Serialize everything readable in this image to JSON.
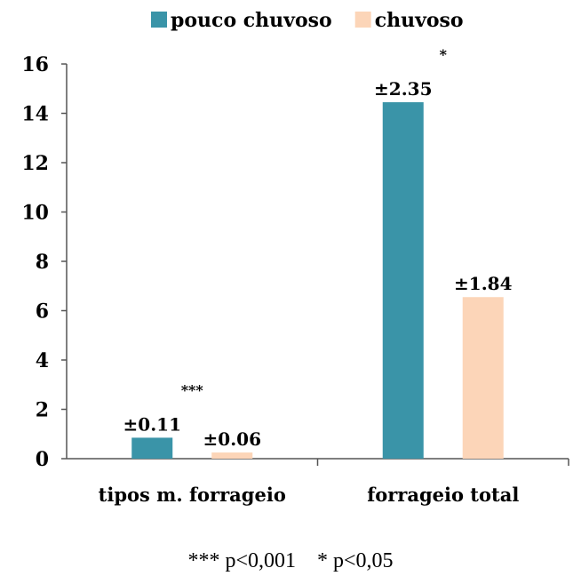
{
  "chart_data": {
    "type": "bar",
    "title": "",
    "xlabel": "",
    "ylabel": "",
    "categories": [
      "tipos m. forrageio",
      "forrageio total"
    ],
    "series": [
      {
        "name": "pouco chuvoso",
        "color": "#3a94a8",
        "values": [
          0.85,
          14.45
        ],
        "error_labels": [
          "±0.11",
          "±2.35"
        ]
      },
      {
        "name": "chuvoso",
        "color": "#fcd5b8",
        "values": [
          0.25,
          6.55
        ],
        "error_labels": [
          "±0.06",
          "±1.84"
        ]
      }
    ],
    "significance": [
      "***",
      "*"
    ],
    "ylim": [
      0,
      16
    ],
    "yticks": [
      0,
      2,
      4,
      6,
      8,
      10,
      12,
      14,
      16
    ],
    "grid": false,
    "legend_position": "top"
  },
  "footnote": "*** p<0,001    * p<0,05"
}
